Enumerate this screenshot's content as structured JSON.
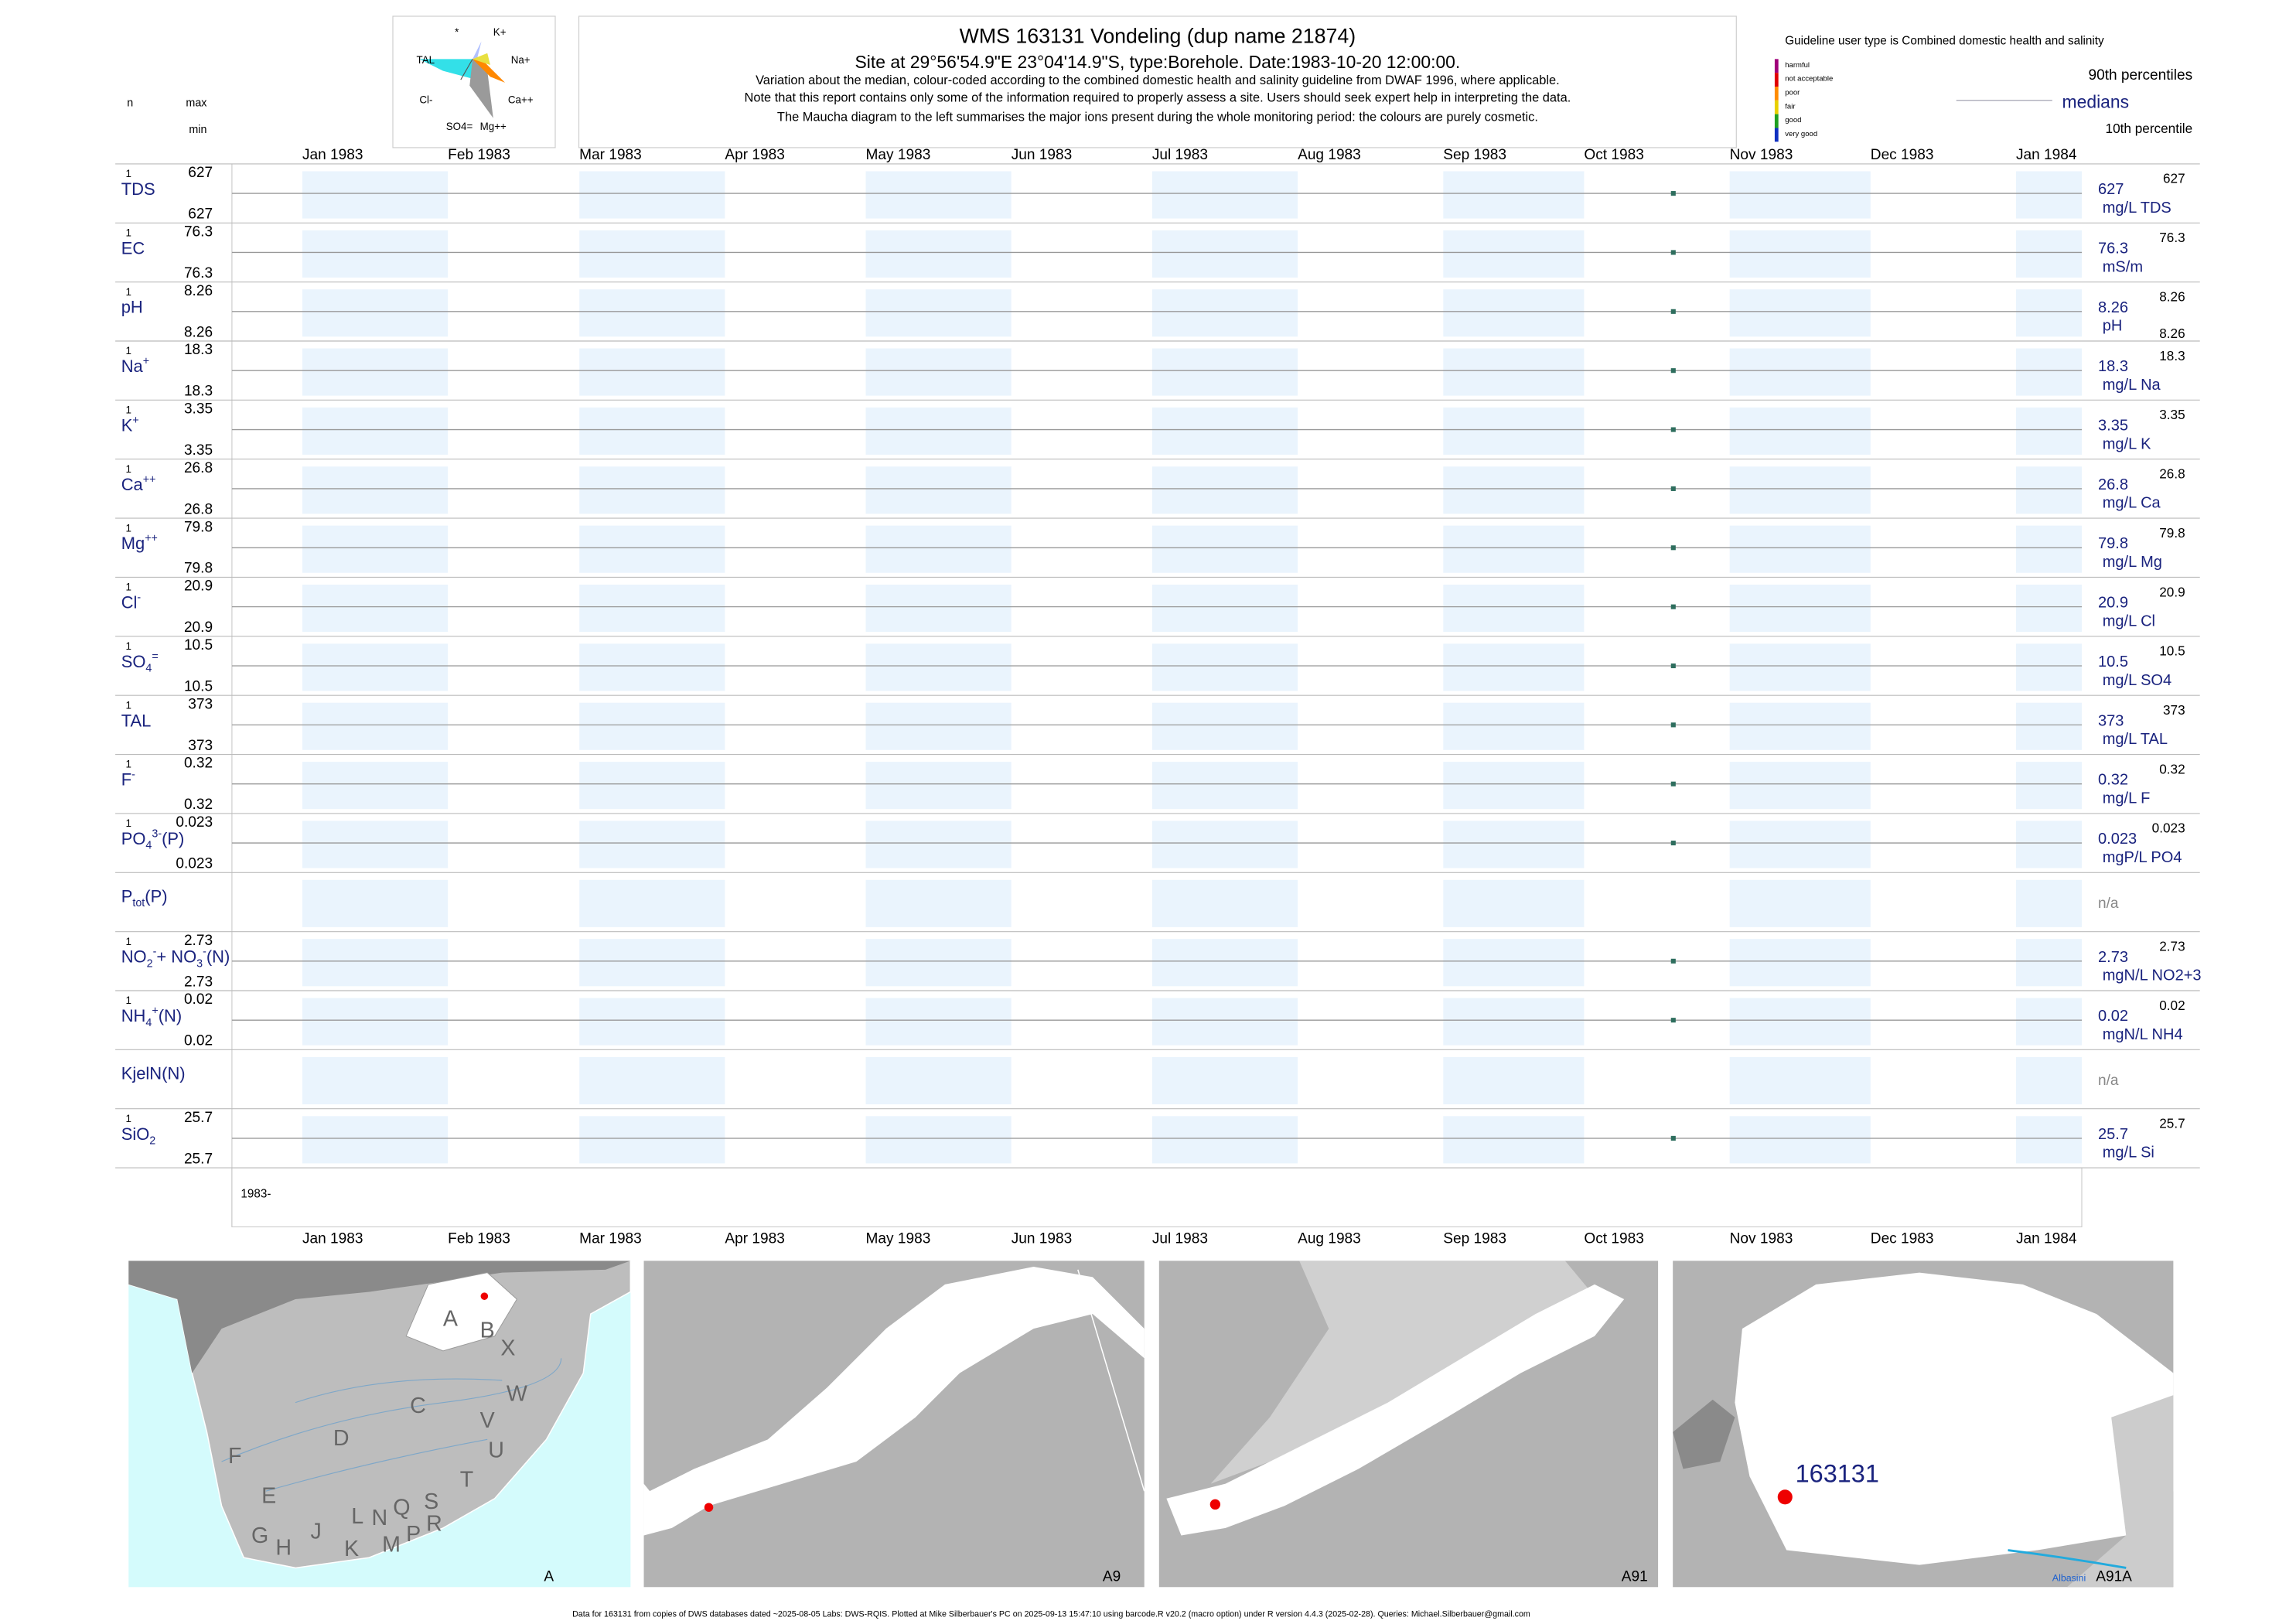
{
  "header": {
    "title": "WMS 163131  Vondeling (dup name 21874)",
    "subtitle": "Site at 29°56'54.9\"E 23°04'14.9\"S, type:Borehole. Date:1983-10-20 12:00:00.",
    "notes": [
      "Variation about the median,  colour-coded according to the combined domestic health and salinity guideline from DWAF 1996, where applicable.",
      "Note that this report contains only some of the information required to properly assess a site. Users should seek expert help in interpreting the data.",
      "The Maucha diagram to the left summarises the major ions present during the whole monitoring period: the colours are purely cosmetic."
    ]
  },
  "maucha": {
    "labels": [
      "*",
      "K+",
      "TAL",
      "Na+",
      "Cl-",
      "Ca++",
      "SO4=",
      "Mg++"
    ]
  },
  "columns": {
    "n": "n",
    "max": "max",
    "min": "min"
  },
  "guideline": {
    "title": "Guideline user type is Combined domestic health and salinity",
    "classes": [
      {
        "name": "harmful",
        "color": "#a0007a"
      },
      {
        "name": "not acceptable",
        "color": "#e00000"
      },
      {
        "name": "poor",
        "color": "#ff8c00"
      },
      {
        "name": "fair",
        "color": "#e8d000"
      },
      {
        "name": "good",
        "color": "#20a020"
      },
      {
        "name": "very good",
        "color": "#1030c0"
      }
    ]
  },
  "legend": {
    "p90": "90th percentiles",
    "median": "medians",
    "p10": "10th percentile"
  },
  "time_axis": {
    "xlim": [
      "1982-12-17",
      "1984-01-15"
    ],
    "ticks": [
      {
        "value": "1983-01-01",
        "label": "Jan 1983"
      },
      {
        "value": "1983-02-01",
        "label": "Feb 1983"
      },
      {
        "value": "1983-03-01",
        "label": "Mar 1983"
      },
      {
        "value": "1983-04-01",
        "label": "Apr 1983"
      },
      {
        "value": "1983-05-01",
        "label": "May 1983"
      },
      {
        "value": "1983-06-01",
        "label": "Jun 1983"
      },
      {
        "value": "1983-07-01",
        "label": "Jul 1983"
      },
      {
        "value": "1983-08-01",
        "label": "Aug 1983"
      },
      {
        "value": "1983-09-01",
        "label": "Sep 1983"
      },
      {
        "value": "1983-10-01",
        "label": "Oct 1983"
      },
      {
        "value": "1983-11-01",
        "label": "Nov 1983"
      },
      {
        "value": "1983-12-01",
        "label": "Dec 1983"
      },
      {
        "value": "1984-01-01",
        "label": "Jan 1984"
      }
    ],
    "year_label": "1983-",
    "point_color": "#2e6e5e"
  },
  "rows": [
    {
      "label": [
        {
          "t": "TDS"
        }
      ],
      "n": 1,
      "max": 627,
      "min": 627,
      "median": 627,
      "unit": "mg/L TDS",
      "p90": 627,
      "samples": [
        {
          "date": "1983-10-20",
          "value": 627
        }
      ]
    },
    {
      "label": [
        {
          "t": "EC"
        }
      ],
      "n": 1,
      "max": 76.3,
      "min": 76.3,
      "median": 76.3,
      "unit": "mS/m",
      "p90": 76.3,
      "samples": [
        {
          "date": "1983-10-20",
          "value": 76.3
        }
      ]
    },
    {
      "label": [
        {
          "t": "pH"
        }
      ],
      "n": 1,
      "max": 8.26,
      "min": 8.26,
      "median": 8.26,
      "unit": "pH",
      "p90": 8.26,
      "p10": 8.26,
      "samples": [
        {
          "date": "1983-10-20",
          "value": 8.26
        }
      ]
    },
    {
      "label": [
        {
          "t": "Na"
        },
        {
          "t": "+",
          "sup": true
        }
      ],
      "n": 1,
      "max": 18.3,
      "min": 18.3,
      "median": 18.3,
      "unit": "mg/L Na",
      "p90": 18.3,
      "samples": [
        {
          "date": "1983-10-20",
          "value": 18.3
        }
      ]
    },
    {
      "label": [
        {
          "t": "K"
        },
        {
          "t": "+",
          "sup": true
        }
      ],
      "n": 1,
      "max": 3.35,
      "min": 3.35,
      "median": 3.35,
      "unit": "mg/L K",
      "p90": 3.35,
      "samples": [
        {
          "date": "1983-10-20",
          "value": 3.35
        }
      ]
    },
    {
      "label": [
        {
          "t": "Ca"
        },
        {
          "t": "++",
          "sup": true
        }
      ],
      "n": 1,
      "max": 26.8,
      "min": 26.8,
      "median": 26.8,
      "unit": "mg/L Ca",
      "p90": 26.8,
      "samples": [
        {
          "date": "1983-10-20",
          "value": 26.8
        }
      ]
    },
    {
      "label": [
        {
          "t": "Mg"
        },
        {
          "t": "++",
          "sup": true
        }
      ],
      "n": 1,
      "max": 79.8,
      "min": 79.8,
      "median": 79.8,
      "unit": "mg/L Mg",
      "p90": 79.8,
      "samples": [
        {
          "date": "1983-10-20",
          "value": 79.8
        }
      ]
    },
    {
      "label": [
        {
          "t": "Cl"
        },
        {
          "t": "-",
          "sup": true
        }
      ],
      "n": 1,
      "max": 20.9,
      "min": 20.9,
      "median": 20.9,
      "unit": "mg/L Cl",
      "p90": 20.9,
      "samples": [
        {
          "date": "1983-10-20",
          "value": 20.9
        }
      ]
    },
    {
      "label": [
        {
          "t": "SO"
        },
        {
          "t": "4",
          "sub": true
        },
        {
          "t": "=",
          "sup": true
        }
      ],
      "n": 1,
      "max": 10.5,
      "min": 10.5,
      "median": 10.5,
      "unit": "mg/L SO4",
      "p90": 10.5,
      "samples": [
        {
          "date": "1983-10-20",
          "value": 10.5
        }
      ]
    },
    {
      "label": [
        {
          "t": "TAL"
        }
      ],
      "n": 1,
      "max": 373,
      "min": 373,
      "median": 373,
      "unit": "mg/L TAL",
      "p90": 373,
      "samples": [
        {
          "date": "1983-10-20",
          "value": 373
        }
      ]
    },
    {
      "label": [
        {
          "t": "F"
        },
        {
          "t": "-",
          "sup": true
        }
      ],
      "n": 1,
      "max": 0.32,
      "min": 0.32,
      "median": 0.32,
      "unit": "mg/L F",
      "p90": 0.32,
      "samples": [
        {
          "date": "1983-10-20",
          "value": 0.32
        }
      ]
    },
    {
      "label": [
        {
          "t": "PO"
        },
        {
          "t": "4",
          "sub": true
        },
        {
          "t": "3-",
          "sup": true
        },
        {
          "t": "(P)"
        }
      ],
      "n": 1,
      "max": 0.023,
      "min": 0.023,
      "median": 0.023,
      "unit": "mgP/L PO4",
      "p90": 0.023,
      "samples": [
        {
          "date": "1983-10-20",
          "value": 0.023
        }
      ]
    },
    {
      "label": [
        {
          "t": "P"
        },
        {
          "t": "tot",
          "sub": true
        },
        {
          "t": "(P)"
        }
      ],
      "status": "n/a"
    },
    {
      "label": [
        {
          "t": "NO"
        },
        {
          "t": "2",
          "sub": true
        },
        {
          "t": "-",
          "sup": true
        },
        {
          "t": "+ NO"
        },
        {
          "t": "3",
          "sub": true
        },
        {
          "t": "-",
          "sup": true
        },
        {
          "t": "(N)"
        }
      ],
      "n": 1,
      "max": 2.73,
      "min": 2.73,
      "median": 2.73,
      "unit": "mgN/L NO2+3",
      "p90": 2.73,
      "samples": [
        {
          "date": "1983-10-20",
          "value": 2.73
        }
      ]
    },
    {
      "label": [
        {
          "t": "NH"
        },
        {
          "t": "4",
          "sub": true
        },
        {
          "t": "+",
          "sup": true
        },
        {
          "t": "(N)"
        }
      ],
      "n": 1,
      "max": 0.02,
      "min": 0.02,
      "median": 0.02,
      "unit": "mgN/L NH4",
      "p90": 0.02,
      "samples": [
        {
          "date": "1983-10-20",
          "value": 0.02
        }
      ]
    },
    {
      "label": [
        {
          "t": "KjelN(N)"
        }
      ],
      "status": "n/a"
    },
    {
      "label": [
        {
          "t": "SiO"
        },
        {
          "t": "2",
          "sub": true
        }
      ],
      "n": 1,
      "max": 25.7,
      "min": 25.7,
      "median": 25.7,
      "unit": "mg/L Si",
      "p90": 25.7,
      "samples": [
        {
          "date": "1983-10-20",
          "value": 25.7
        }
      ]
    }
  ],
  "maps": [
    {
      "caption": "A",
      "letters": [
        "A",
        "B",
        "X",
        "W",
        "C",
        "V",
        "U",
        "D",
        "F",
        "T",
        "E",
        "S",
        "R",
        "Q",
        "L",
        "N",
        "M",
        "P",
        "G",
        "H",
        "J",
        "K"
      ]
    },
    {
      "caption": "A9"
    },
    {
      "caption": "A91"
    },
    {
      "caption": "A91A",
      "site": "163131",
      "river": "Albasini"
    }
  ],
  "footer": "Data for 163131 from copies of DWS databases dated ~2025-08-05 Labs: DWS-RQIS. Plotted at Mike Silberbauer's PC on 2025-09-13 15:47:10 using barcode.R v20.2 (macro option) under R version 4.4.3 (2025-02-28). Queries: Michael.Silberbauer@gmail.com"
}
